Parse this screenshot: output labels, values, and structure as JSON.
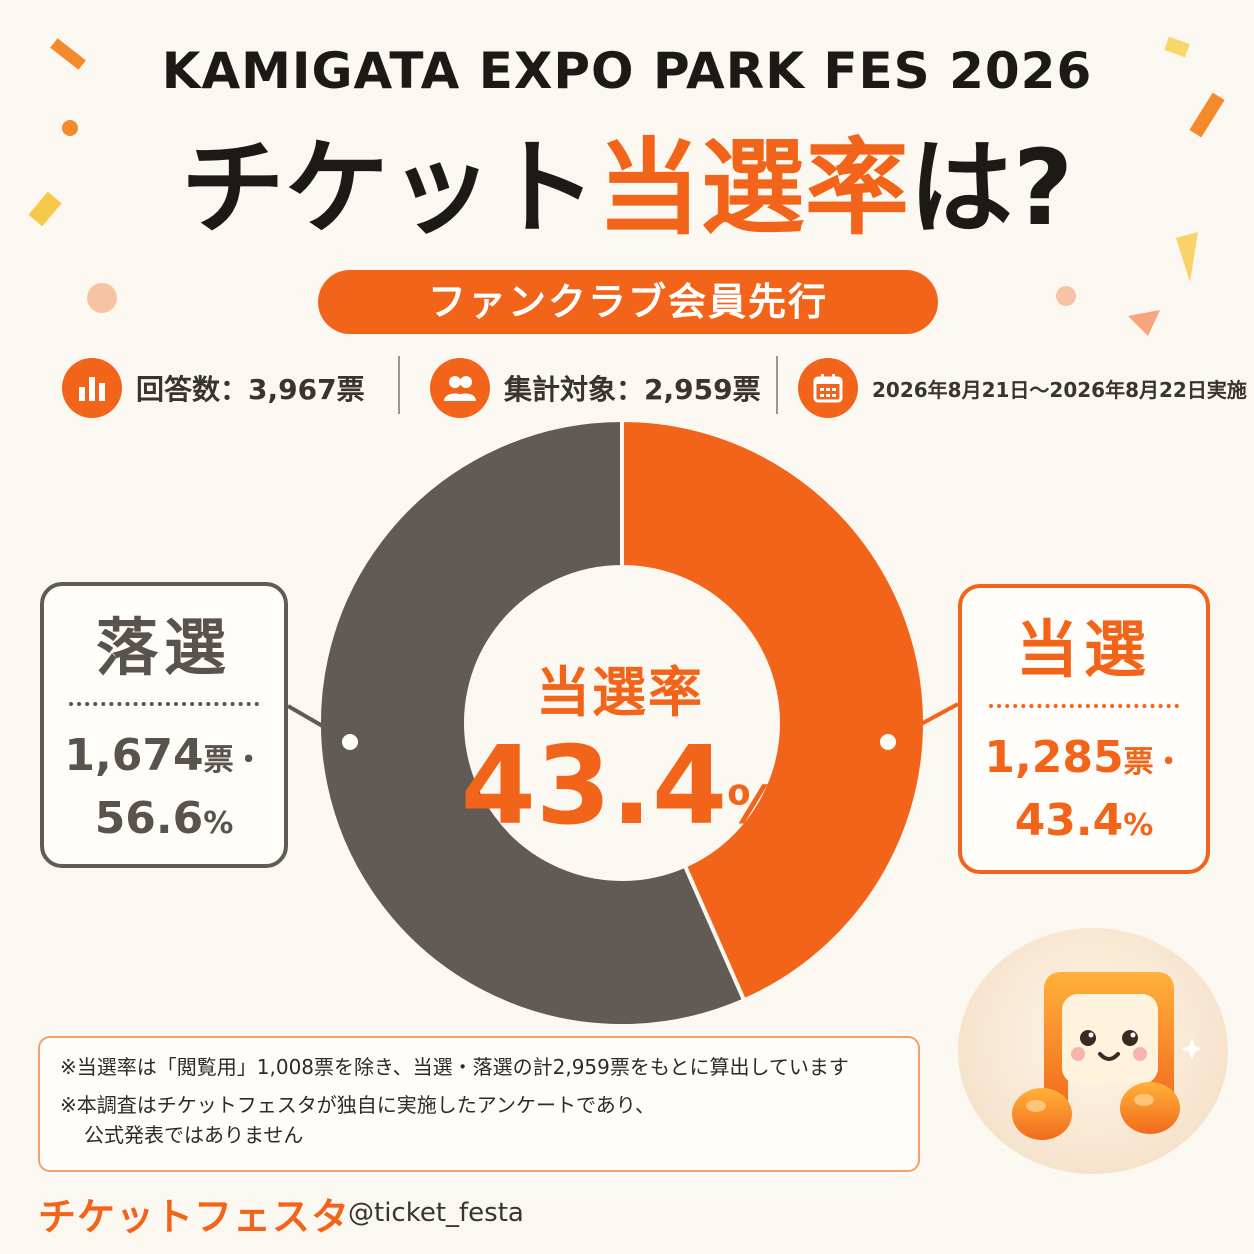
{
  "header": {
    "event_title": "KAMIGATA EXPO PARK FES 2026",
    "headline_prefix": "チケット",
    "headline_accent": "当選率",
    "headline_suffix": "は?",
    "badge": "ファンクラブ会員先行"
  },
  "stats": {
    "responses": "回答数：3,967票",
    "target": "集計対象：2,959票",
    "period": "2026年8月21日～2026年8月22日実施"
  },
  "icons": {
    "responses": "bar-chart-icon",
    "target": "people-icon",
    "period": "calendar-icon"
  },
  "chart_data": {
    "type": "pie",
    "donut": true,
    "center_label": "当選率",
    "center_value": "43.4",
    "center_unit": "%",
    "slices": [
      {
        "label": "当選",
        "count": "1,285",
        "count_unit": "票・",
        "value": 43.4,
        "percent_text": "43.4",
        "percent_unit": "%",
        "color": "#f26419"
      },
      {
        "label": "落選",
        "count": "1,674",
        "count_unit": "票・",
        "value": 56.6,
        "percent_text": "56.6",
        "percent_unit": "%",
        "color": "#625a55"
      }
    ]
  },
  "notes": {
    "line1": "※当選率は「閲覧用」1,008票を除き、当選・落選の計2,959票をもとに算出しています",
    "line2a": "※本調査はチケットフェスタが独自に実施したアンケートであり、",
    "line2b": "公式発表ではありません"
  },
  "footer": {
    "brand": "チケットフェスタ",
    "handle": "@ticket_festa"
  },
  "colors": {
    "accent": "#f26419",
    "lose": "#625a55",
    "background": "#fbf7f1"
  }
}
